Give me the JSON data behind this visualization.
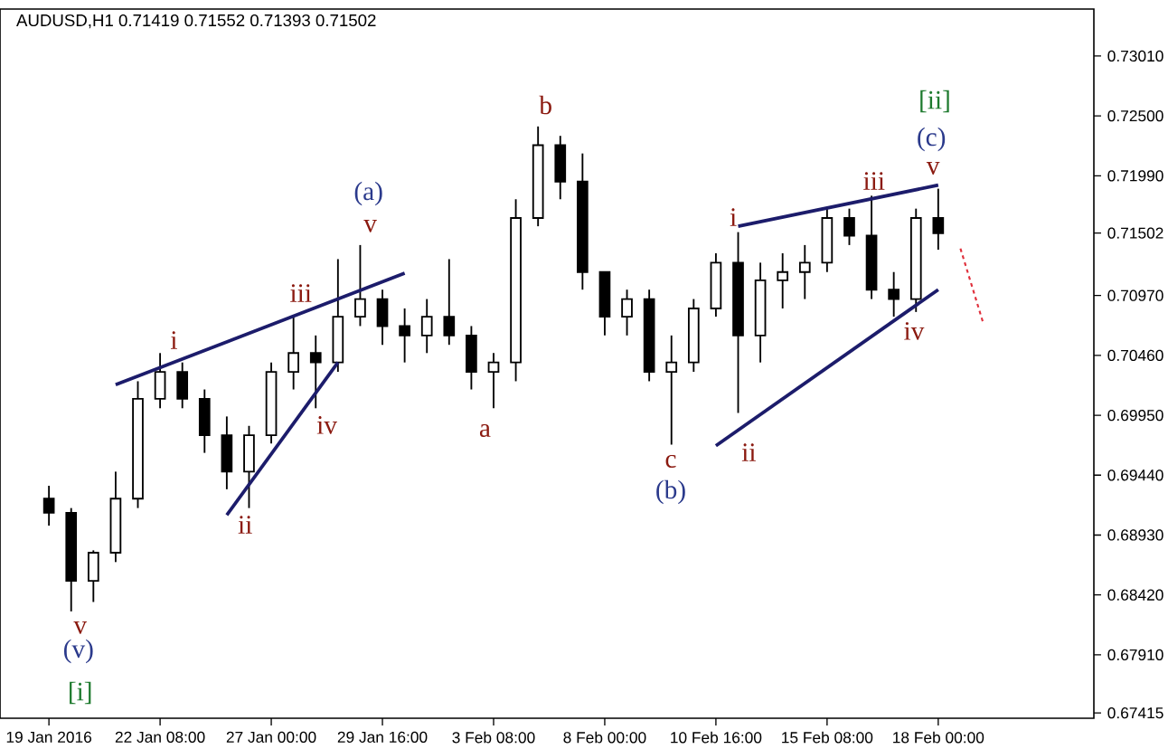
{
  "chart_data": {
    "type": "candlestick",
    "title": "AUDUSD,H1 0.71419 0.71552 0.71393 0.71502",
    "color": "#000000",
    "categories": [
      "19 Jan 2016",
      null,
      null,
      null,
      null,
      "22 Jan 08:00",
      null,
      null,
      null,
      null,
      "27 Jan 00:00",
      null,
      null,
      null,
      null,
      "29 Jan 16:00",
      null,
      null,
      null,
      null,
      "3 Feb 08:00",
      null,
      null,
      null,
      null,
      "8 Feb 00:00",
      null,
      null,
      null,
      null,
      "10 Feb 16:00",
      null,
      null,
      null,
      null,
      "15 Feb 08:00",
      null,
      null,
      null,
      null,
      "18 Feb 00:00",
      null,
      null,
      null,
      null,
      null,
      null,
      null
    ],
    "ohlc": [
      [
        0.6924,
        0.6935,
        0.6901,
        0.6912
      ],
      [
        0.6912,
        0.6916,
        0.6828,
        0.6854
      ],
      [
        0.6854,
        0.688,
        0.6836,
        0.6878
      ],
      [
        0.6878,
        0.6947,
        0.687,
        0.6924
      ],
      [
        0.6924,
        0.7024,
        0.6916,
        0.7009
      ],
      [
        0.7009,
        0.7048,
        0.7001,
        0.7032
      ],
      [
        0.7032,
        0.704,
        0.7001,
        0.7009
      ],
      [
        0.7009,
        0.7017,
        0.6963,
        0.6978
      ],
      [
        0.6978,
        0.6994,
        0.6932,
        0.6947
      ],
      [
        0.6947,
        0.6986,
        0.6916,
        0.6978
      ],
      [
        0.6978,
        0.704,
        0.6971,
        0.7032
      ],
      [
        0.7032,
        0.7079,
        0.7017,
        0.7048
      ],
      [
        0.7048,
        0.7063,
        0.7001,
        0.704
      ],
      [
        0.704,
        0.7128,
        0.7032,
        0.7079
      ],
      [
        0.7079,
        0.714,
        0.7071,
        0.7094
      ],
      [
        0.7094,
        0.7102,
        0.7055,
        0.7071
      ],
      [
        0.7071,
        0.7086,
        0.704,
        0.7063
      ],
      [
        0.7063,
        0.7094,
        0.7048,
        0.7079
      ],
      [
        0.7079,
        0.7128,
        0.7055,
        0.7063
      ],
      [
        0.7063,
        0.7071,
        0.7017,
        0.7032
      ],
      [
        0.7032,
        0.7048,
        0.7001,
        0.704
      ],
      [
        0.704,
        0.7179,
        0.7024,
        0.7163
      ],
      [
        0.7163,
        0.7241,
        0.7156,
        0.7225
      ],
      [
        0.7225,
        0.7233,
        0.7179,
        0.7194
      ],
      [
        0.7194,
        0.7218,
        0.7102,
        0.7117
      ],
      [
        0.7117,
        0.7117,
        0.7063,
        0.7079
      ],
      [
        0.7079,
        0.7102,
        0.7063,
        0.7094
      ],
      [
        0.7094,
        0.7102,
        0.7024,
        0.7032
      ],
      [
        0.7032,
        0.7063,
        0.697,
        0.704
      ],
      [
        0.704,
        0.7094,
        0.7032,
        0.7086
      ],
      [
        0.7086,
        0.7133,
        0.7079,
        0.7125
      ],
      [
        0.7125,
        0.7151,
        0.6997,
        0.7063
      ],
      [
        0.7063,
        0.7125,
        0.704,
        0.711
      ],
      [
        0.711,
        0.7133,
        0.7086,
        0.7117
      ],
      [
        0.7117,
        0.714,
        0.7094,
        0.7125
      ],
      [
        0.7125,
        0.7171,
        0.7117,
        0.7163
      ],
      [
        0.7163,
        0.7171,
        0.714,
        0.7148
      ],
      [
        0.7148,
        0.7182,
        0.7094,
        0.7102
      ],
      [
        0.7102,
        0.7117,
        0.7079,
        0.7094
      ],
      [
        0.7094,
        0.7171,
        0.7083,
        0.7163
      ],
      [
        0.7163,
        0.7188,
        0.7136,
        0.715
      ],
      null,
      null,
      null,
      null,
      null,
      null,
      null
    ],
    "series": [
      {
        "type": "line",
        "color": "#1c1c6b",
        "values": [
          null,
          null,
          null,
          0.7021,
          null,
          null,
          null,
          null,
          null,
          null,
          null,
          null,
          null,
          null,
          null,
          null,
          0.7116,
          null,
          null,
          null,
          null,
          null,
          null,
          null,
          null,
          null,
          null,
          null,
          null,
          null,
          null,
          null,
          null,
          null,
          null,
          null,
          null,
          null,
          null,
          null,
          null,
          null,
          null,
          null,
          null,
          null,
          null,
          null
        ]
      },
      {
        "type": "line",
        "color": "#1c1c6b",
        "values": [
          null,
          null,
          null,
          null,
          null,
          null,
          null,
          null,
          0.691,
          null,
          null,
          null,
          null,
          0.704,
          null,
          null,
          null,
          null,
          null,
          null,
          null,
          null,
          null,
          null,
          null,
          null,
          null,
          null,
          null,
          null,
          null,
          null,
          null,
          null,
          null,
          null,
          null,
          null,
          null,
          null,
          null,
          null,
          null,
          null,
          null,
          null,
          null,
          null
        ]
      },
      {
        "type": "line",
        "color": "#1c1c6b",
        "values": [
          null,
          null,
          null,
          null,
          null,
          null,
          null,
          null,
          null,
          null,
          null,
          null,
          null,
          null,
          null,
          null,
          null,
          null,
          null,
          null,
          null,
          null,
          null,
          null,
          null,
          null,
          null,
          null,
          null,
          null,
          null,
          0.7156,
          null,
          null,
          null,
          null,
          null,
          null,
          null,
          null,
          0.7191,
          null,
          null,
          null,
          null,
          null,
          null,
          null
        ]
      },
      {
        "type": "line",
        "color": "#1c1c6b",
        "values": [
          null,
          null,
          null,
          null,
          null,
          null,
          null,
          null,
          null,
          null,
          null,
          null,
          null,
          null,
          null,
          null,
          null,
          null,
          null,
          null,
          null,
          null,
          null,
          null,
          null,
          null,
          null,
          null,
          null,
          null,
          0.6969,
          null,
          null,
          null,
          null,
          null,
          null,
          null,
          null,
          null,
          0.7102,
          null,
          null,
          null,
          null,
          null,
          null,
          null
        ]
      },
      {
        "type": "line",
        "color": "#e0303c",
        "line_style": "dotted",
        "values": [
          null,
          null,
          null,
          null,
          null,
          null,
          null,
          null,
          null,
          null,
          null,
          null,
          null,
          null,
          null,
          null,
          null,
          null,
          null,
          null,
          null,
          null,
          null,
          null,
          null,
          null,
          null,
          null,
          null,
          null,
          null,
          null,
          null,
          null,
          null,
          null,
          null,
          null,
          null,
          null,
          null,
          0.7137,
          0.7075,
          null,
          null,
          null,
          null,
          null
        ]
      }
    ],
    "ylim": [
      0.6737,
      0.7341
    ],
    "yticks": [
      {
        "value": 0.67415,
        "label": "0.67415"
      },
      {
        "value": 0.6791,
        "label": "0.67910"
      },
      {
        "value": 0.6842,
        "label": "0.68420"
      },
      {
        "value": 0.6893,
        "label": "0.68930"
      },
      {
        "value": 0.6944,
        "label": "0.69440"
      },
      {
        "value": 0.6995,
        "label": "0.69950"
      },
      {
        "value": 0.7046,
        "label": "0.70460"
      },
      {
        "value": 0.7097,
        "label": "0.70970"
      },
      {
        "value": 0.71502,
        "label": "0.71502"
      },
      {
        "value": 0.7199,
        "label": "0.71990"
      },
      {
        "value": 0.725,
        "label": "0.72500"
      },
      {
        "value": 0.7301,
        "label": "0.73010"
      }
    ],
    "annotations": [
      "v",
      "(v)",
      "[i]",
      "i",
      "ii",
      "iii",
      "iv",
      "v",
      "(a)",
      "a",
      "b",
      "c",
      "(b)",
      "i",
      "ii",
      "iii",
      "iv",
      "v",
      "(c)",
      "[ii]"
    ]
  }
}
